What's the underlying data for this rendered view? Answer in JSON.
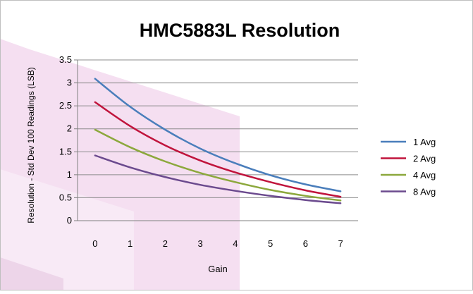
{
  "chart_data": {
    "type": "line",
    "title": "HMC5883L Resolution",
    "xlabel": "Gain",
    "ylabel": "Resolution - Std Dev 100 Readings  (LSB)",
    "xlim": [
      -0.5,
      7.5
    ],
    "ylim": [
      0,
      3.5
    ],
    "x_ticks": [
      "0",
      "1",
      "2",
      "3",
      "4",
      "5",
      "6",
      "7"
    ],
    "y_ticks": [
      "0",
      "0.5",
      "1",
      "1.5",
      "2",
      "2.5",
      "3",
      "3.5"
    ],
    "grid": "horizontal",
    "legend": "right",
    "x": [
      0,
      1,
      2,
      3,
      4,
      5,
      6,
      7
    ],
    "series": [
      {
        "name": "1 Avg",
        "color": "#4A7EBB",
        "values": [
          3.09,
          2.48,
          1.98,
          1.57,
          1.25,
          0.99,
          0.79,
          0.64
        ]
      },
      {
        "name": "2 Avg",
        "color": "#C0143C",
        "values": [
          2.58,
          2.06,
          1.64,
          1.31,
          1.05,
          0.84,
          0.66,
          0.52
        ]
      },
      {
        "name": "4 Avg",
        "color": "#8CA83C",
        "values": [
          1.98,
          1.6,
          1.29,
          1.04,
          0.84,
          0.67,
          0.54,
          0.44
        ]
      },
      {
        "name": "8 Avg",
        "color": "#6B4A8E",
        "values": [
          1.42,
          1.16,
          0.95,
          0.78,
          0.65,
          0.54,
          0.45,
          0.38
        ]
      }
    ]
  }
}
